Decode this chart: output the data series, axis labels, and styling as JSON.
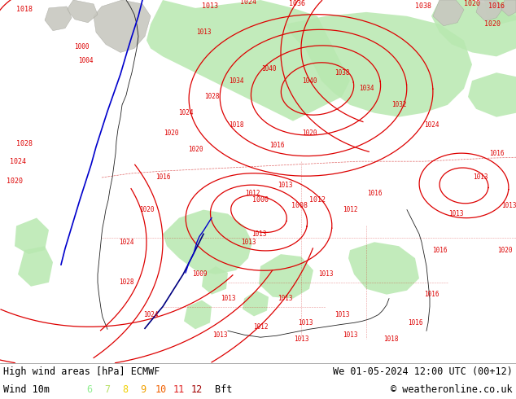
{
  "title_left": "High wind areas [hPa] ECMWF",
  "title_right": "We 01-05-2024 12:00 UTC (00+12)",
  "subtitle_left": "Wind 10m",
  "subtitle_right": "© weatheronline.co.uk",
  "legend_numbers": [
    "6",
    "7",
    "8",
    "9",
    "10",
    "11",
    "12"
  ],
  "legend_colors": [
    "#90ee90",
    "#b8e068",
    "#f0d000",
    "#f0a000",
    "#f06000",
    "#e02020",
    "#a00000"
  ],
  "legend_suffix": "Bft",
  "map_bg": "#f0f0ee",
  "bottom_bg": "#ffffff",
  "text_color": "#000000",
  "figsize": [
    6.34,
    4.9
  ],
  "dpi": 100,
  "isobar_color": "#dd0000",
  "green_fill": "#b8e8b0",
  "green_fill2": "#d0f0c0",
  "gray_land": "#c8c8c0",
  "blue_line": "#0000cc",
  "dark_navy": "#000080"
}
